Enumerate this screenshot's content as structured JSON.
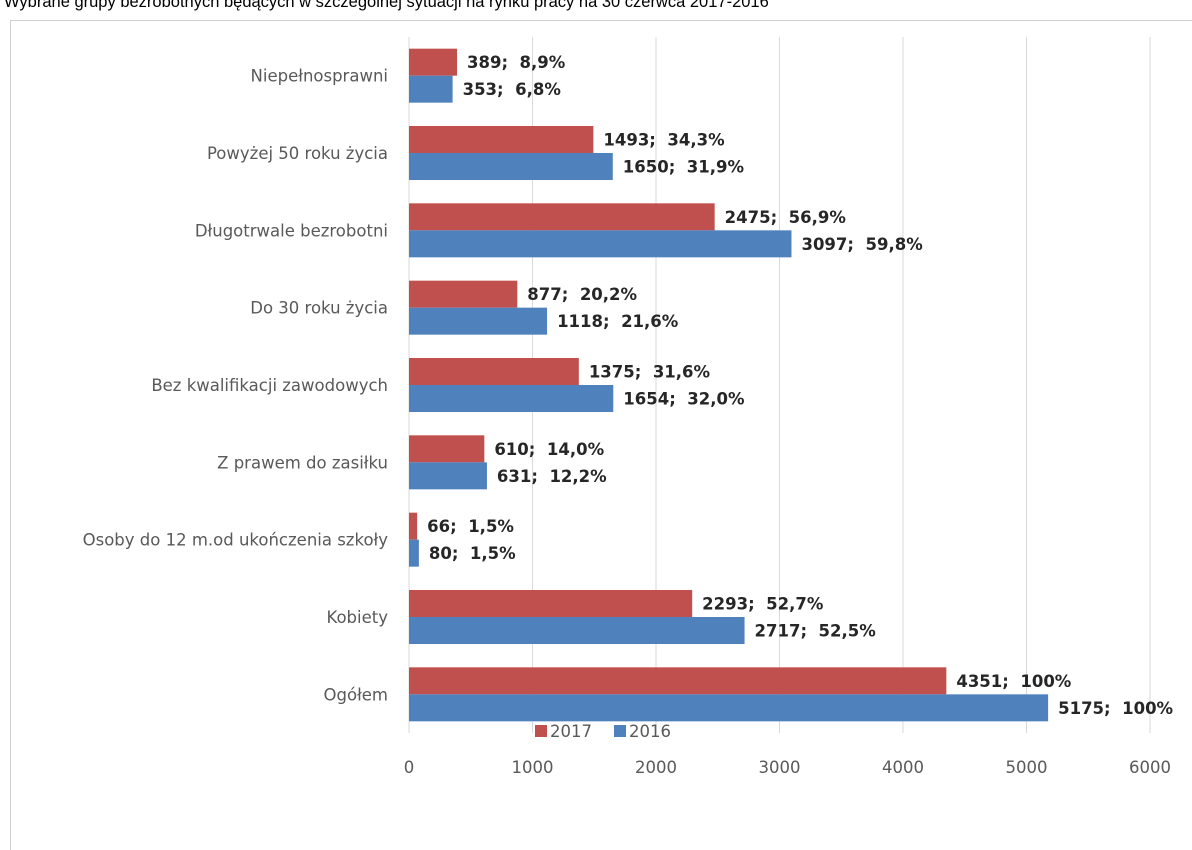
{
  "chart_data": {
    "type": "bar",
    "orientation": "horizontal",
    "title": "Wybrane grupy bezrobotnych będących w szczególnej sytuacji na rynku pracy na 30 czerwca 2017-2016",
    "categories": [
      "Niepełnosprawni",
      "Powyżej 50 roku życia",
      "Długotrwale bezrobotni",
      "Do 30 roku życia",
      "Bez kwalifikacji zawodowych",
      "Z prawem do zasiłku",
      "Osoby do 12 m.od ukończenia szkoły",
      "Kobiety",
      "Ogółem"
    ],
    "series": [
      {
        "name": "2017",
        "color": "#c0504d",
        "values": [
          389,
          1493,
          2475,
          877,
          1375,
          610,
          66,
          2293,
          4351
        ],
        "labels": [
          "389;  8,9%",
          "1493;  34,3%",
          "2475;  56,9%",
          "877;  20,2%",
          "1375;  31,6%",
          "610;  14,0%",
          "66;  1,5%",
          "2293;  52,7%",
          "4351;  100%"
        ]
      },
      {
        "name": "2016",
        "color": "#4f81bd",
        "values": [
          353,
          1650,
          3097,
          1118,
          1654,
          631,
          80,
          2717,
          5175
        ],
        "labels": [
          "353;  6,8%",
          "1650;  31,9%",
          "3097;  59,8%",
          "1118;  21,6%",
          "1654;  32,0%",
          "631;  12,2%",
          "80;  1,5%",
          "2717;  52,5%",
          "5175;  100%"
        ]
      }
    ],
    "xlim": [
      0,
      6000
    ],
    "xticks": [
      0,
      1000,
      2000,
      3000,
      4000,
      5000,
      6000
    ],
    "grid": true,
    "legend": "bottom"
  }
}
